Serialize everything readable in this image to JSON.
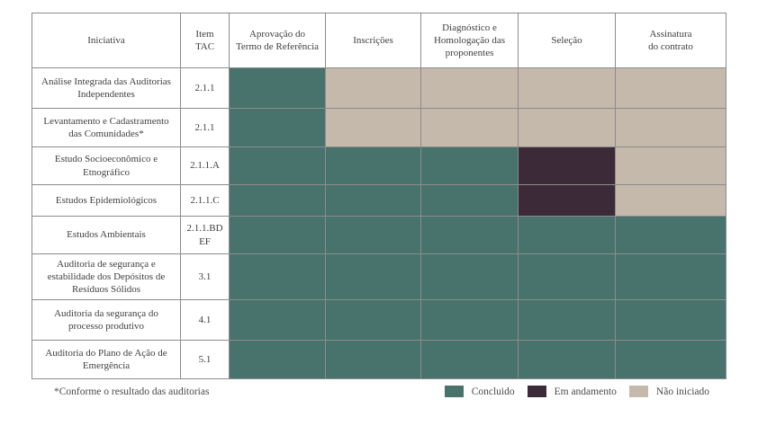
{
  "colors": {
    "concluido": "#47736c",
    "em_andamento": "#3c2a38",
    "nao_iniciado": "#c5b9ac",
    "grid": "#8c8c8c",
    "text": "#3f3f3f"
  },
  "chart_data": {
    "type": "table",
    "title": "",
    "columns": [
      "Iniciativa",
      "Item\nTAC",
      "Aprovação do\nTermo de Referência",
      "Inscrições",
      "Diagnóstico e\nHomologação das\nproponentes",
      "Seleção",
      "Assinatura\ndo contrato"
    ],
    "phase_columns": [
      "Aprovação do Termo de Referência",
      "Inscrições",
      "Diagnóstico e Homologação das proponentes",
      "Seleção",
      "Assinatura do contrato"
    ],
    "status_values": [
      "concluido",
      "em_andamento",
      "nao_iniciado"
    ],
    "rows": [
      {
        "iniciativa": "Análise Integrada das Auditorias Independentes",
        "item_tac": "2.1.1",
        "statuses": [
          "concluido",
          "nao_iniciado",
          "nao_iniciado",
          "nao_iniciado",
          "nao_iniciado"
        ]
      },
      {
        "iniciativa": "Levantamento e Cadastramento das Comunidades*",
        "item_tac": "2.1.1",
        "statuses": [
          "concluido",
          "nao_iniciado",
          "nao_iniciado",
          "nao_iniciado",
          "nao_iniciado"
        ]
      },
      {
        "iniciativa": "Estudo Socioeconômico e Etnográfico",
        "item_tac": "2.1.1.A",
        "statuses": [
          "concluido",
          "concluido",
          "concluido",
          "em_andamento",
          "nao_iniciado"
        ]
      },
      {
        "iniciativa": "Estudos Epidemiológicos",
        "item_tac": "2.1.1.C",
        "statuses": [
          "concluido",
          "concluido",
          "concluido",
          "em_andamento",
          "nao_iniciado"
        ]
      },
      {
        "iniciativa": "Estudos Ambientais",
        "item_tac": "2.1.1.BDEF",
        "statuses": [
          "concluido",
          "concluido",
          "concluido",
          "concluido",
          "concluido"
        ]
      },
      {
        "iniciativa": "Auditoria de segurança e estabilidade dos Depósitos de Resíduos Sólidos",
        "item_tac": "3.1",
        "statuses": [
          "concluido",
          "concluido",
          "concluido",
          "concluido",
          "concluido"
        ]
      },
      {
        "iniciativa": "Auditoria da segurança do processo produtivo",
        "item_tac": "4.1",
        "statuses": [
          "concluido",
          "concluido",
          "concluido",
          "concluido",
          "concluido"
        ]
      },
      {
        "iniciativa": "Auditoria do Plano de Ação de Emergência",
        "item_tac": "5.1",
        "statuses": [
          "concluido",
          "concluido",
          "concluido",
          "concluido",
          "concluido"
        ]
      }
    ]
  },
  "footnote": "*Conforme o resultado das auditorias",
  "legend": [
    {
      "label": "Concluido",
      "key": "concluido"
    },
    {
      "label": "Em andamento",
      "key": "em_andamento"
    },
    {
      "label": "Não iniciado",
      "key": "nao_iniciado"
    }
  ]
}
